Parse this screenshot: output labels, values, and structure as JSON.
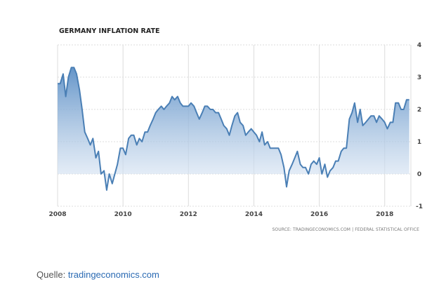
{
  "chart_data": {
    "type": "area",
    "title": "GERMANY INFLATION RATE",
    "xlabel": "",
    "ylabel": "",
    "xlim": [
      2008.0,
      2018.8
    ],
    "ylim": [
      -1,
      4
    ],
    "grid": true,
    "x_ticks": [
      2008,
      2010,
      2012,
      2014,
      2016,
      2018
    ],
    "y_ticks": [
      -1,
      0,
      1,
      2,
      3,
      4
    ],
    "y_axis_position": "right",
    "colors": {
      "line": "#4a7fb5",
      "fill_top": "#5c8fc6",
      "fill_bottom": "#e6eef8",
      "grid": "#dcdcdc"
    },
    "series": [
      {
        "x": [
          2008.0,
          2008.08,
          2008.17,
          2008.25,
          2008.33,
          2008.42,
          2008.5,
          2008.58,
          2008.67,
          2008.75,
          2008.83,
          2008.92,
          2009.0,
          2009.08,
          2009.17,
          2009.25,
          2009.33,
          2009.42,
          2009.5,
          2009.58,
          2009.67,
          2009.75,
          2009.83,
          2009.92,
          2010.0,
          2010.08,
          2010.17,
          2010.25,
          2010.33,
          2010.42,
          2010.5,
          2010.58,
          2010.67,
          2010.75,
          2010.83,
          2010.92,
          2011.0,
          2011.08,
          2011.17,
          2011.25,
          2011.33,
          2011.42,
          2011.5,
          2011.58,
          2011.67,
          2011.75,
          2011.83,
          2011.92,
          2012.0,
          2012.08,
          2012.17,
          2012.25,
          2012.33,
          2012.42,
          2012.5,
          2012.58,
          2012.67,
          2012.75,
          2012.83,
          2012.92,
          2013.0,
          2013.08,
          2013.17,
          2013.25,
          2013.33,
          2013.42,
          2013.5,
          2013.58,
          2013.67,
          2013.75,
          2013.83,
          2013.92,
          2014.0,
          2014.08,
          2014.17,
          2014.25,
          2014.33,
          2014.42,
          2014.5,
          2014.58,
          2014.67,
          2014.75,
          2014.83,
          2014.92,
          2015.0,
          2015.08,
          2015.17,
          2015.25,
          2015.33,
          2015.42,
          2015.5,
          2015.58,
          2015.67,
          2015.75,
          2015.83,
          2015.92,
          2016.0,
          2016.08,
          2016.17,
          2016.25,
          2016.33,
          2016.42,
          2016.5,
          2016.58,
          2016.67,
          2016.75,
          2016.83,
          2016.92,
          2017.0,
          2017.08,
          2017.17,
          2017.25,
          2017.33,
          2017.42,
          2017.5,
          2017.58,
          2017.67,
          2017.75,
          2017.83,
          2017.92,
          2018.0,
          2018.08,
          2018.17,
          2018.25,
          2018.33,
          2018.42,
          2018.5,
          2018.58,
          2018.67,
          2018.75
        ],
        "values": [
          2.8,
          2.8,
          3.1,
          2.4,
          3.0,
          3.3,
          3.3,
          3.1,
          2.6,
          2.0,
          1.3,
          1.1,
          0.9,
          1.1,
          0.5,
          0.7,
          0.0,
          0.1,
          -0.5,
          0.0,
          -0.3,
          0.0,
          0.3,
          0.8,
          0.8,
          0.6,
          1.1,
          1.2,
          1.2,
          0.9,
          1.1,
          1.0,
          1.3,
          1.3,
          1.5,
          1.7,
          1.9,
          2.0,
          2.1,
          2.0,
          2.1,
          2.2,
          2.4,
          2.3,
          2.4,
          2.2,
          2.1,
          2.1,
          2.1,
          2.2,
          2.1,
          1.9,
          1.7,
          1.9,
          2.1,
          2.1,
          2.0,
          2.0,
          1.9,
          1.9,
          1.7,
          1.5,
          1.4,
          1.2,
          1.5,
          1.8,
          1.9,
          1.6,
          1.5,
          1.2,
          1.3,
          1.4,
          1.3,
          1.2,
          1.0,
          1.3,
          0.9,
          1.0,
          0.8,
          0.8,
          0.8,
          0.8,
          0.6,
          0.2,
          -0.4,
          0.1,
          0.3,
          0.5,
          0.7,
          0.3,
          0.2,
          0.2,
          0.0,
          0.3,
          0.4,
          0.3,
          0.5,
          0.0,
          0.3,
          -0.1,
          0.1,
          0.2,
          0.4,
          0.4,
          0.7,
          0.8,
          0.8,
          1.7,
          1.9,
          2.2,
          1.6,
          2.0,
          1.5,
          1.6,
          1.7,
          1.8,
          1.8,
          1.6,
          1.8,
          1.7,
          1.6,
          1.4,
          1.6,
          1.6,
          2.2,
          2.2,
          2.0,
          2.0,
          2.3,
          2.3
        ]
      }
    ],
    "source_note": "SOURCE: TRADINGECONOMICS.COM  |  FEDERAL STATISTICAL OFFICE"
  },
  "caption": {
    "prefix": "Quelle: ",
    "link": "tradingeconomics.com"
  }
}
